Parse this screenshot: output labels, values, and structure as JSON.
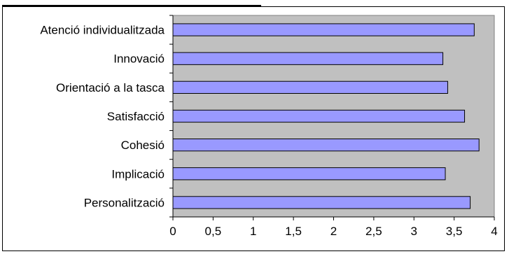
{
  "chart_data": {
    "type": "bar",
    "orientation": "horizontal",
    "categories": [
      "Atenció individualitzada",
      "Innovació",
      "Orientació a la tasca",
      "Satisfacció",
      "Cohesió",
      "Implicació",
      "Personalització"
    ],
    "values": [
      3.75,
      3.36,
      3.42,
      3.63,
      3.81,
      3.39,
      3.7
    ],
    "xlim": [
      0,
      4
    ],
    "xticks": [
      "0",
      "0,5",
      "1",
      "1,5",
      "2",
      "2,5",
      "3",
      "3,5",
      "4"
    ],
    "xtick_values": [
      0,
      0.5,
      1,
      1.5,
      2,
      2.5,
      3,
      3.5,
      4
    ],
    "grid": false,
    "legend": "none",
    "colors": {
      "plot_background": "#c0c0c0",
      "bar_fill": "#9999ff",
      "bar_stroke": "#000000"
    }
  }
}
